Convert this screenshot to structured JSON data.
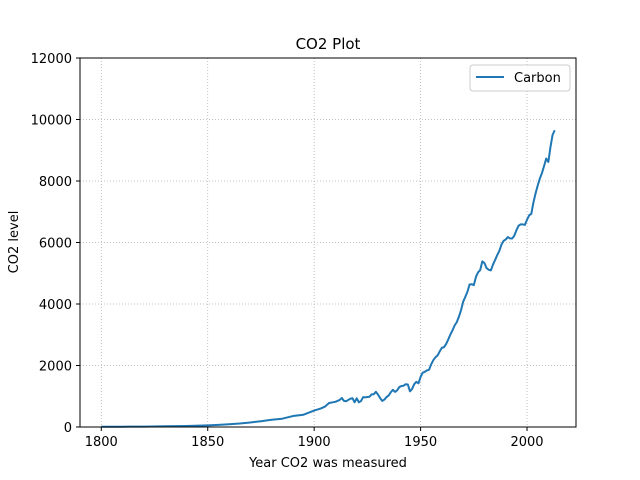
{
  "chart_data": {
    "type": "line",
    "title": "CO2 Plot",
    "xlabel": "Year CO2 was measured",
    "ylabel": "CO2 level",
    "xlim": [
      1790,
      2023
    ],
    "ylim": [
      0,
      12000
    ],
    "xticks": [
      1800,
      1850,
      1900,
      1950,
      2000
    ],
    "yticks": [
      0,
      2000,
      4000,
      6000,
      8000,
      10000,
      12000
    ],
    "grid": true,
    "legend_position": "top-right",
    "series": [
      {
        "name": "Carbon",
        "color": "#1f77b4",
        "points": [
          [
            1800,
            8
          ],
          [
            1810,
            10
          ],
          [
            1820,
            14
          ],
          [
            1830,
            24
          ],
          [
            1840,
            33
          ],
          [
            1850,
            54
          ],
          [
            1855,
            70
          ],
          [
            1860,
            91
          ],
          [
            1865,
            115
          ],
          [
            1870,
            147
          ],
          [
            1875,
            188
          ],
          [
            1880,
            236
          ],
          [
            1885,
            270
          ],
          [
            1890,
            356
          ],
          [
            1895,
            400
          ],
          [
            1900,
            534
          ],
          [
            1903,
            600
          ],
          [
            1905,
            660
          ],
          [
            1907,
            780
          ],
          [
            1910,
            819
          ],
          [
            1912,
            880
          ],
          [
            1913,
            943
          ],
          [
            1914,
            850
          ],
          [
            1915,
            836
          ],
          [
            1916,
            880
          ],
          [
            1917,
            919
          ],
          [
            1918,
            936
          ],
          [
            1919,
            806
          ],
          [
            1920,
            932
          ],
          [
            1921,
            803
          ],
          [
            1922,
            845
          ],
          [
            1923,
            970
          ],
          [
            1924,
            963
          ],
          [
            1925,
            975
          ],
          [
            1926,
            983
          ],
          [
            1927,
            1062
          ],
          [
            1928,
            1065
          ],
          [
            1929,
            1145
          ],
          [
            1930,
            1053
          ],
          [
            1931,
            940
          ],
          [
            1932,
            847
          ],
          [
            1933,
            893
          ],
          [
            1934,
            973
          ],
          [
            1935,
            1027
          ],
          [
            1936,
            1130
          ],
          [
            1937,
            1209
          ],
          [
            1938,
            1142
          ],
          [
            1939,
            1192
          ],
          [
            1940,
            1299
          ],
          [
            1941,
            1334
          ],
          [
            1942,
            1342
          ],
          [
            1943,
            1391
          ],
          [
            1944,
            1383
          ],
          [
            1945,
            1160
          ],
          [
            1946,
            1238
          ],
          [
            1947,
            1392
          ],
          [
            1948,
            1469
          ],
          [
            1949,
            1419
          ],
          [
            1950,
            1630
          ],
          [
            1951,
            1768
          ],
          [
            1952,
            1796
          ],
          [
            1953,
            1841
          ],
          [
            1954,
            1865
          ],
          [
            1955,
            2043
          ],
          [
            1956,
            2177
          ],
          [
            1957,
            2270
          ],
          [
            1958,
            2330
          ],
          [
            1959,
            2462
          ],
          [
            1960,
            2577
          ],
          [
            1961,
            2594
          ],
          [
            1962,
            2700
          ],
          [
            1963,
            2848
          ],
          [
            1964,
            3008
          ],
          [
            1965,
            3145
          ],
          [
            1966,
            3305
          ],
          [
            1967,
            3411
          ],
          [
            1968,
            3588
          ],
          [
            1969,
            3800
          ],
          [
            1970,
            4076
          ],
          [
            1971,
            4231
          ],
          [
            1972,
            4399
          ],
          [
            1973,
            4635
          ],
          [
            1974,
            4644
          ],
          [
            1975,
            4615
          ],
          [
            1976,
            4883
          ],
          [
            1977,
            5029
          ],
          [
            1978,
            5105
          ],
          [
            1979,
            5387
          ],
          [
            1980,
            5332
          ],
          [
            1981,
            5168
          ],
          [
            1982,
            5113
          ],
          [
            1983,
            5093
          ],
          [
            1984,
            5282
          ],
          [
            1985,
            5434
          ],
          [
            1986,
            5592
          ],
          [
            1987,
            5728
          ],
          [
            1988,
            5933
          ],
          [
            1989,
            6053
          ],
          [
            1990,
            6099
          ],
          [
            1991,
            6176
          ],
          [
            1992,
            6135
          ],
          [
            1993,
            6128
          ],
          [
            1994,
            6220
          ],
          [
            1995,
            6395
          ],
          [
            1996,
            6542
          ],
          [
            1997,
            6591
          ],
          [
            1998,
            6588
          ],
          [
            1999,
            6574
          ],
          [
            2000,
            6743
          ],
          [
            2001,
            6886
          ],
          [
            2002,
            6930
          ],
          [
            2003,
            7301
          ],
          [
            2004,
            7594
          ],
          [
            2005,
            7850
          ],
          [
            2006,
            8076
          ],
          [
            2007,
            8257
          ],
          [
            2008,
            8484
          ],
          [
            2009,
            8729
          ],
          [
            2010,
            8620
          ],
          [
            2011,
            9100
          ],
          [
            2012,
            9500
          ],
          [
            2013,
            9650
          ]
        ]
      }
    ]
  }
}
